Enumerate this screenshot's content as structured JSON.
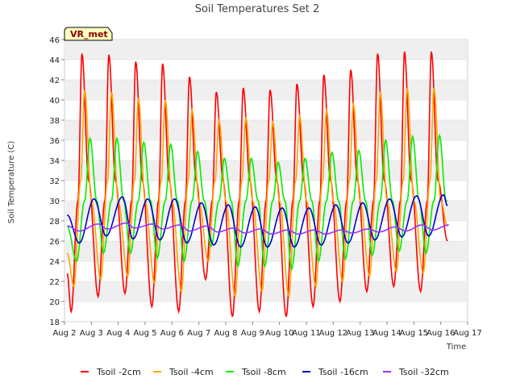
{
  "chart_data": {
    "type": "line",
    "title": "Soil Temperatures Set 2",
    "xlabel": "Time",
    "ylabel": "Soil Temperature (C)",
    "badge": "VR_met",
    "ylim": [
      18,
      46
    ],
    "yticks": [
      18,
      20,
      22,
      24,
      26,
      28,
      30,
      32,
      34,
      36,
      38,
      40,
      42,
      44,
      46
    ],
    "xlim": [
      2,
      17
    ],
    "xticks": [
      {
        "x": 2,
        "label": "Aug 2"
      },
      {
        "x": 3,
        "label": "Aug 3"
      },
      {
        "x": 4,
        "label": "Aug 4"
      },
      {
        "x": 5,
        "label": "Aug 5"
      },
      {
        "x": 6,
        "label": "Aug 6"
      },
      {
        "x": 7,
        "label": "Aug 7"
      },
      {
        "x": 8,
        "label": "Aug 8"
      },
      {
        "x": 9,
        "label": "Aug 9"
      },
      {
        "x": 10,
        "label": "Aug 10"
      },
      {
        "x": 11,
        "label": "Aug 11"
      },
      {
        "x": 12,
        "label": "Aug 12"
      },
      {
        "x": 13,
        "label": "Aug 13"
      },
      {
        "x": 14,
        "label": "Aug 14"
      },
      {
        "x": 15,
        "label": "Aug 15"
      },
      {
        "x": 16,
        "label": "Aug 16"
      },
      {
        "x": 17,
        "label": "Aug 17"
      }
    ],
    "grid": "horizontal bands",
    "legend_position": "bottom",
    "series": [
      {
        "name": "Tsoil -2cm",
        "color": "#ff0000",
        "x": [
          2.1,
          2.25,
          2.5,
          2.65,
          2.9,
          3.25,
          3.5,
          3.65,
          3.9,
          4.25,
          4.5,
          4.65,
          4.9,
          5.25,
          5.5,
          5.65,
          5.9,
          6.25,
          6.5,
          6.65,
          6.9,
          7.25,
          7.5,
          7.65,
          7.9,
          8.25,
          8.5,
          8.65,
          8.9,
          9.25,
          9.5,
          9.65,
          9.9,
          10.25,
          10.5,
          10.65,
          10.9,
          11.25,
          11.5,
          11.65,
          11.9,
          12.25,
          12.5,
          12.65,
          12.9,
          13.25,
          13.5,
          13.65,
          13.9,
          14.25,
          14.5,
          14.65,
          14.9,
          15.25,
          15.5,
          15.65,
          15.9,
          16.25
        ],
        "y": [
          22.8,
          19.0,
          30,
          44.6,
          32,
          20.5,
          30,
          44.5,
          32,
          20.8,
          30,
          43.8,
          32,
          19.5,
          30,
          43.6,
          32,
          19.0,
          30,
          42.3,
          32,
          22.2,
          30,
          40.8,
          32,
          18.5,
          30,
          41.2,
          32,
          19.0,
          30,
          41.0,
          32,
          18.5,
          30,
          41.6,
          32,
          19.5,
          30,
          42.5,
          32,
          20.0,
          30,
          43.0,
          32,
          21.0,
          30,
          44.6,
          32,
          21.5,
          30,
          44.8,
          32,
          21.0,
          30,
          44.8,
          32,
          26.0
        ]
      },
      {
        "name": "Tsoil -4cm",
        "color": "#ffa500",
        "x": [
          2.1,
          2.35,
          2.6,
          2.75,
          3.0,
          3.35,
          3.6,
          3.75,
          4.0,
          4.35,
          4.6,
          4.75,
          5.0,
          5.35,
          5.6,
          5.75,
          6.0,
          6.35,
          6.6,
          6.75,
          7.0,
          7.35,
          7.6,
          7.75,
          8.0,
          8.35,
          8.6,
          8.75,
          9.0,
          9.35,
          9.6,
          9.75,
          10.0,
          10.35,
          10.6,
          10.75,
          11.0,
          11.35,
          11.6,
          11.75,
          12.0,
          12.35,
          12.6,
          12.75,
          13.0,
          13.35,
          13.6,
          13.75,
          14.0,
          14.35,
          14.6,
          14.75,
          15.0,
          15.35,
          15.6,
          15.75,
          16.0,
          16.25
        ],
        "y": [
          24.8,
          21.5,
          32,
          41.0,
          30,
          22.2,
          32,
          40.8,
          30,
          22.5,
          32,
          40.2,
          30,
          21.8,
          32,
          40.0,
          30,
          21.0,
          32,
          39.0,
          30,
          24.0,
          32,
          38.0,
          30,
          20.5,
          32,
          38.2,
          30,
          21.0,
          32,
          37.8,
          30,
          20.5,
          32,
          38.4,
          30,
          21.5,
          32,
          39.0,
          30,
          22.0,
          32,
          39.6,
          30,
          22.5,
          32,
          40.8,
          30,
          23.0,
          32,
          41.2,
          30,
          22.8,
          32,
          41.2,
          30,
          27.5
        ]
      },
      {
        "name": "Tsoil -8cm",
        "color": "#00ee00",
        "x": [
          2.1,
          2.45,
          2.75,
          2.95,
          3.2,
          3.45,
          3.75,
          3.95,
          4.2,
          4.45,
          4.75,
          4.95,
          5.2,
          5.45,
          5.75,
          5.95,
          6.2,
          6.45,
          6.75,
          6.95,
          7.2,
          7.45,
          7.75,
          7.95,
          8.2,
          8.45,
          8.75,
          8.95,
          9.2,
          9.45,
          9.75,
          9.95,
          10.2,
          10.45,
          10.75,
          10.95,
          11.2,
          11.45,
          11.75,
          11.95,
          12.2,
          12.45,
          12.75,
          12.95,
          13.2,
          13.45,
          13.75,
          13.95,
          14.2,
          14.45,
          14.75,
          14.95,
          15.2,
          15.45,
          15.75,
          15.95,
          16.2,
          16.25
        ],
        "y": [
          27.5,
          24.0,
          30,
          36.2,
          30,
          24.8,
          30,
          36.2,
          30,
          24.8,
          30,
          35.8,
          30,
          24.3,
          30,
          35.6,
          30,
          24.0,
          30,
          34.9,
          30,
          25.5,
          30,
          34.2,
          30,
          23.5,
          30,
          34.2,
          30,
          23.5,
          30,
          33.8,
          30,
          23.2,
          30,
          34.2,
          30,
          24.0,
          30,
          34.8,
          30,
          24.2,
          30,
          35.0,
          30,
          24.6,
          30,
          36.0,
          30,
          25.0,
          30,
          36.4,
          30,
          24.8,
          30,
          36.5,
          30,
          30.0
        ]
      },
      {
        "name": "Tsoil -16cm",
        "color": "#0000cc",
        "x": [
          2.1,
          2.55,
          3.1,
          3.55,
          4.15,
          4.55,
          5.1,
          5.55,
          6.1,
          6.55,
          7.1,
          7.55,
          8.1,
          8.55,
          9.1,
          9.55,
          10.1,
          10.55,
          11.1,
          11.55,
          12.1,
          12.55,
          13.1,
          13.55,
          14.1,
          14.55,
          15.1,
          15.55,
          16.1,
          16.25
        ],
        "y": [
          28.6,
          25.8,
          30.2,
          26.5,
          30.4,
          26.2,
          30.2,
          26.1,
          30.2,
          25.8,
          29.8,
          25.6,
          29.6,
          25.4,
          29.4,
          25.4,
          29.3,
          25.4,
          29.3,
          25.6,
          29.6,
          25.8,
          29.8,
          26.1,
          30.2,
          26.4,
          30.5,
          26.5,
          30.6,
          29.5
        ]
      },
      {
        "name": "Tsoil -32cm",
        "color": "#9b30ff",
        "x": [
          2.1,
          2.55,
          3.25,
          3.6,
          4.3,
          4.6,
          5.3,
          5.65,
          6.3,
          6.65,
          7.3,
          7.7,
          8.3,
          8.7,
          9.3,
          9.7,
          10.3,
          10.7,
          11.3,
          11.7,
          12.3,
          12.7,
          13.3,
          13.7,
          14.3,
          14.7,
          15.3,
          15.7,
          16.3
        ],
        "y": [
          27.5,
          27.0,
          27.7,
          27.2,
          27.8,
          27.3,
          27.7,
          27.2,
          27.6,
          27.0,
          27.5,
          26.9,
          27.3,
          26.8,
          27.2,
          26.7,
          27.1,
          26.7,
          27.1,
          26.7,
          27.1,
          26.8,
          27.2,
          26.9,
          27.4,
          27.0,
          27.6,
          27.1,
          27.6
        ]
      }
    ]
  }
}
